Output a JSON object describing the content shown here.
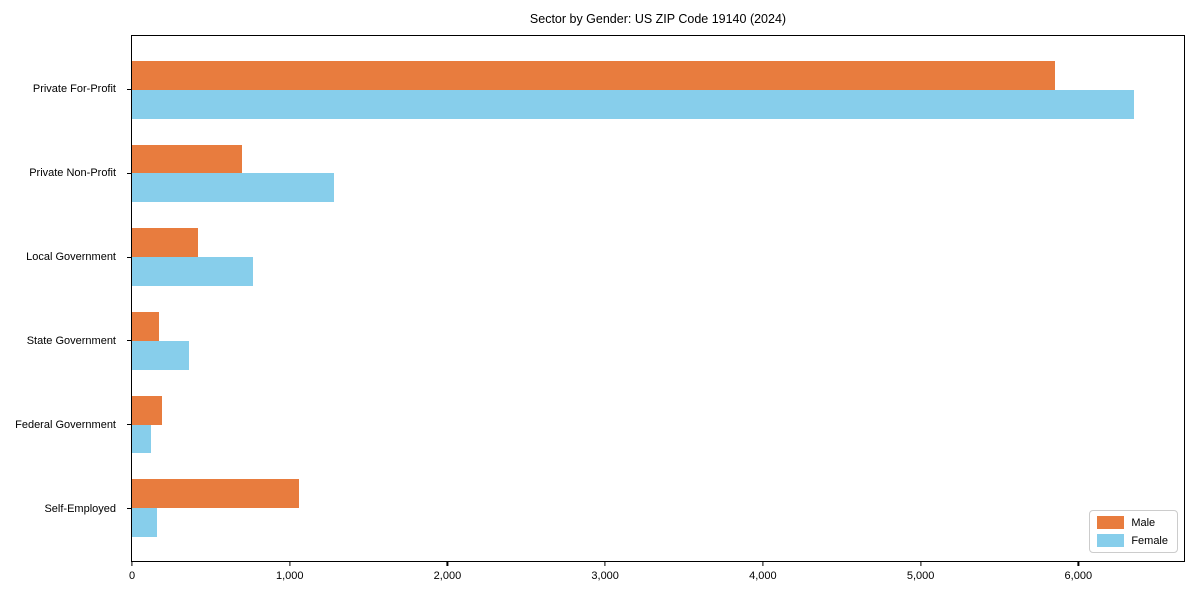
{
  "title": "Sector by Gender: US ZIP Code 19140 (2024)",
  "colors": {
    "male": "#E87C3E",
    "female": "#87CEEB",
    "spine": "#000000",
    "legend_border": "#cccccc",
    "background": "#ffffff"
  },
  "chart_data": {
    "type": "bar",
    "orientation": "horizontal",
    "title": "Sector by Gender: US ZIP Code 19140 (2024)",
    "xlabel": "",
    "ylabel": "",
    "categories": [
      "Private For-Profit",
      "Private Non-Profit",
      "Local Government",
      "State Government",
      "Federal Government",
      "Self-Employed"
    ],
    "series": [
      {
        "name": "Male",
        "color": "#E87C3E",
        "values": [
          5850,
          700,
          420,
          170,
          190,
          1060
        ]
      },
      {
        "name": "Female",
        "color": "#87CEEB",
        "values": [
          6350,
          1280,
          770,
          360,
          120,
          160
        ]
      }
    ],
    "xlim": [
      0,
      6670
    ],
    "xticks": [
      0,
      1000,
      2000,
      3000,
      4000,
      5000,
      6000
    ],
    "xtick_labels": [
      "0",
      "1,000",
      "2,000",
      "3,000",
      "4,000",
      "5,000",
      "6,000"
    ],
    "grid": false,
    "legend_position": "lower right"
  },
  "legend": {
    "male_label": "Male",
    "female_label": "Female"
  }
}
